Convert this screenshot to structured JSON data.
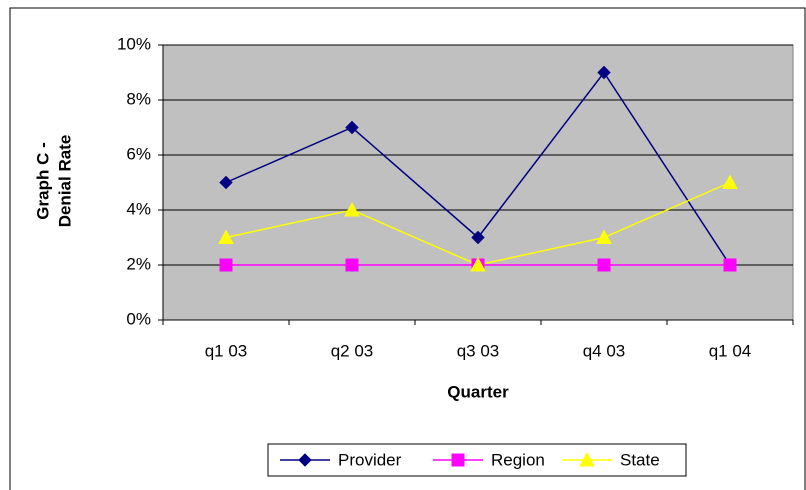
{
  "chart_data": {
    "type": "line",
    "ylabel": [
      "Graph C -",
      "Denial Rate"
    ],
    "xlabel": "Quarter",
    "categories": [
      "q1 03",
      "q2 03",
      "q3 03",
      "q4 03",
      "q1 04"
    ],
    "series": [
      {
        "name": "Provider",
        "color": "#000080",
        "marker": "diamond",
        "values": [
          5,
          7,
          3,
          9,
          2
        ]
      },
      {
        "name": "Region",
        "color": "#ff00ff",
        "marker": "square",
        "values": [
          2,
          2,
          2,
          2,
          2
        ]
      },
      {
        "name": "State",
        "color": "#ffff00",
        "marker": "triangle",
        "values": [
          3,
          4,
          2,
          3,
          5
        ]
      }
    ],
    "ylim": [
      0,
      10
    ],
    "yticks": [
      {
        "value": 0,
        "label": "0%"
      },
      {
        "value": 2,
        "label": "2%"
      },
      {
        "value": 4,
        "label": "4%"
      },
      {
        "value": 6,
        "label": "6%"
      },
      {
        "value": 8,
        "label": "8%"
      },
      {
        "value": 10,
        "label": "10%"
      }
    ],
    "grid": true,
    "plot_background": "#c0c0c0",
    "legend": "bottom"
  }
}
